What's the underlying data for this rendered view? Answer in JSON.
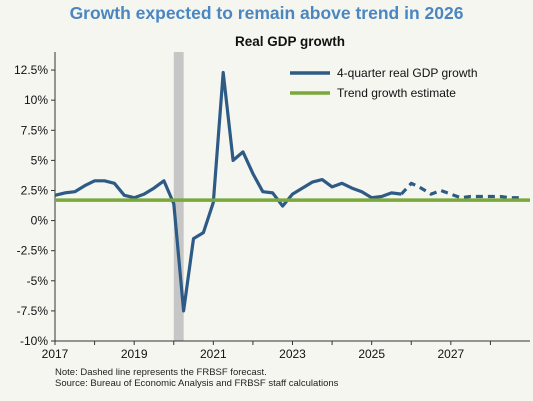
{
  "title": "Growth expected to remain above trend in 2026",
  "subtitle": "Real GDP growth",
  "notes": {
    "line1": "Note: Dashed line represents the FRBSF forecast.",
    "line2": "Source: Bureau of Economic Analysis and FRBSF staff calculations"
  },
  "colors": {
    "gdp_line": "#2e5b86",
    "trend_line": "#7aa83a",
    "recession_band": "#c6c6c6",
    "title": "#4a86c0",
    "background": "#f6f6f1"
  },
  "chart_data": {
    "type": "line",
    "title": "Real GDP growth",
    "xlabel": "",
    "ylabel": "",
    "xlim": [
      2017,
      2029
    ],
    "ylim": [
      -10,
      14
    ],
    "x_ticks": [
      2017,
      2019,
      2021,
      2023,
      2025,
      2027
    ],
    "x_tick_labels": [
      "2017",
      "2019",
      "2021",
      "2023",
      "2025",
      "2027"
    ],
    "y_ticks": [
      -10,
      -7.5,
      -5,
      -2.5,
      0,
      2.5,
      5,
      7.5,
      10,
      12.5
    ],
    "y_tick_labels": [
      "-10%",
      "-7.5%",
      "-5%",
      "-2.5%",
      "0%",
      "2.5%",
      "5%",
      "7.5%",
      "10%",
      "12.5%"
    ],
    "legend_position": "top-right",
    "legend": [
      "4-quarter real GDP growth",
      "Trend growth estimate"
    ],
    "recession_band": {
      "from": 2020.0,
      "to": 2020.25
    },
    "series": [
      {
        "name": "4-quarter real GDP growth",
        "style": "solid",
        "x": [
          2017.0,
          2017.25,
          2017.5,
          2017.75,
          2018.0,
          2018.25,
          2018.5,
          2018.75,
          2019.0,
          2019.25,
          2019.5,
          2019.75,
          2020.0,
          2020.25,
          2020.5,
          2020.75,
          2021.0,
          2021.25,
          2021.5,
          2021.75,
          2022.0,
          2022.25,
          2022.5,
          2022.75,
          2023.0,
          2023.25,
          2023.5,
          2023.75,
          2024.0,
          2024.25,
          2024.5,
          2024.75,
          2025.0,
          2025.25,
          2025.5,
          2025.75
        ],
        "y": [
          2.1,
          2.3,
          2.4,
          2.9,
          3.3,
          3.3,
          3.1,
          2.1,
          1.9,
          2.2,
          2.7,
          3.3,
          1.4,
          -7.5,
          -1.5,
          -1.0,
          1.5,
          12.3,
          5.0,
          5.7,
          3.9,
          2.4,
          2.3,
          1.2,
          2.2,
          2.7,
          3.2,
          3.4,
          2.8,
          3.1,
          2.7,
          2.4,
          1.9,
          2.0,
          2.3,
          2.2
        ]
      },
      {
        "name": "4-quarter real GDP growth (FRBSF forecast)",
        "style": "dashed",
        "x": [
          2025.75,
          2026.0,
          2026.25,
          2026.5,
          2026.75,
          2027.0,
          2027.25,
          2027.5,
          2027.75,
          2028.0,
          2028.25,
          2028.5,
          2028.75
        ],
        "y": [
          2.2,
          3.1,
          2.7,
          2.2,
          2.5,
          2.2,
          1.9,
          2.0,
          2.0,
          2.0,
          2.0,
          1.9,
          1.9
        ]
      },
      {
        "name": "Trend growth estimate",
        "style": "solid",
        "x": [
          2017.0,
          2029.0
        ],
        "y": [
          1.7,
          1.7
        ]
      }
    ]
  }
}
